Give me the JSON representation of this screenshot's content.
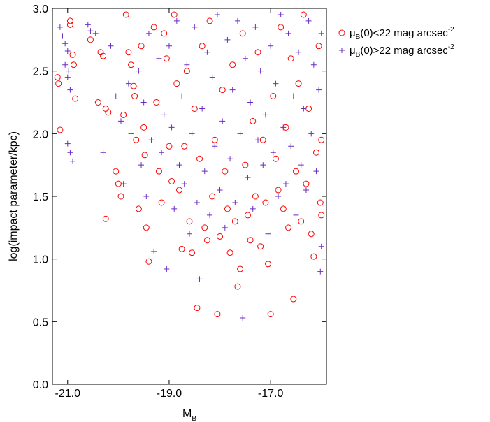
{
  "chart_data": {
    "type": "scatter",
    "title": "",
    "xlabel": {
      "main": "M",
      "sub": "B"
    },
    "ylabel": "log(impact parameter/kpc)",
    "xlim": [
      -21.3,
      -15.9
    ],
    "ylim": [
      0.0,
      3.0
    ],
    "xticks": [
      -21.0,
      -19.0,
      -17.0
    ],
    "xtick_labels": [
      "-21.0",
      "-19.0",
      "-17.0"
    ],
    "yticks": [
      0.0,
      0.5,
      1.0,
      1.5,
      2.0,
      2.5,
      3.0
    ],
    "ytick_labels": [
      "0.0",
      "0.5",
      "1.0",
      "1.5",
      "2.0",
      "2.5",
      "3.0"
    ],
    "grid": false,
    "legend_position": "outside-top-right",
    "series": [
      {
        "name": "μB(0)<22 mag arcsec-2",
        "legend": {
          "mu": "μ",
          "sub": "B",
          "text": "(0)<22 mag arcsec",
          "sup": "-2"
        },
        "marker": "circle",
        "color": "#ff0000",
        "points": [
          [
            -21.2,
            2.45
          ],
          [
            -21.18,
            2.4
          ],
          [
            -21.15,
            2.03
          ],
          [
            -20.95,
            2.9
          ],
          [
            -20.95,
            2.87
          ],
          [
            -20.9,
            2.63
          ],
          [
            -20.88,
            2.55
          ],
          [
            -20.85,
            2.28
          ],
          [
            -20.55,
            2.75
          ],
          [
            -20.4,
            2.25
          ],
          [
            -20.35,
            2.65
          ],
          [
            -20.3,
            2.62
          ],
          [
            -20.25,
            2.2
          ],
          [
            -20.25,
            1.32
          ],
          [
            -20.2,
            2.17
          ],
          [
            -20.05,
            1.7
          ],
          [
            -20.0,
            1.6
          ],
          [
            -19.95,
            1.5
          ],
          [
            -19.9,
            2.15
          ],
          [
            -19.85,
            2.95
          ],
          [
            -19.8,
            2.65
          ],
          [
            -19.75,
            2.55
          ],
          [
            -19.7,
            2.38
          ],
          [
            -19.68,
            2.3
          ],
          [
            -19.65,
            1.95
          ],
          [
            -19.6,
            1.4
          ],
          [
            -19.55,
            2.7
          ],
          [
            -19.5,
            2.05
          ],
          [
            -19.48,
            1.83
          ],
          [
            -19.45,
            1.25
          ],
          [
            -19.4,
            0.98
          ],
          [
            -19.3,
            2.85
          ],
          [
            -19.25,
            2.25
          ],
          [
            -19.2,
            1.7
          ],
          [
            -19.15,
            1.45
          ],
          [
            -19.1,
            2.8
          ],
          [
            -19.05,
            2.6
          ],
          [
            -19.0,
            1.9
          ],
          [
            -18.95,
            1.62
          ],
          [
            -18.9,
            2.95
          ],
          [
            -18.85,
            2.4
          ],
          [
            -18.8,
            1.55
          ],
          [
            -18.75,
            1.08
          ],
          [
            -18.7,
            1.9
          ],
          [
            -18.65,
            2.5
          ],
          [
            -18.6,
            1.3
          ],
          [
            -18.55,
            1.05
          ],
          [
            -18.5,
            2.2
          ],
          [
            -18.45,
            0.61
          ],
          [
            -18.4,
            1.8
          ],
          [
            -18.35,
            2.7
          ],
          [
            -18.3,
            1.25
          ],
          [
            -18.25,
            1.15
          ],
          [
            -18.2,
            2.9
          ],
          [
            -18.15,
            1.5
          ],
          [
            -18.1,
            1.95
          ],
          [
            -18.05,
            0.56
          ],
          [
            -18.0,
            1.18
          ],
          [
            -17.95,
            2.35
          ],
          [
            -17.9,
            1.7
          ],
          [
            -17.85,
            1.4
          ],
          [
            -17.8,
            1.05
          ],
          [
            -17.75,
            2.55
          ],
          [
            -17.7,
            1.3
          ],
          [
            -17.65,
            0.78
          ],
          [
            -17.6,
            0.92
          ],
          [
            -17.55,
            2.8
          ],
          [
            -17.5,
            1.75
          ],
          [
            -17.45,
            1.35
          ],
          [
            -17.4,
            1.15
          ],
          [
            -17.35,
            2.1
          ],
          [
            -17.3,
            1.5
          ],
          [
            -17.25,
            2.65
          ],
          [
            -17.2,
            1.1
          ],
          [
            -17.15,
            1.95
          ],
          [
            -17.1,
            1.45
          ],
          [
            -17.05,
            0.96
          ],
          [
            -17.0,
            0.56
          ],
          [
            -16.95,
            2.3
          ],
          [
            -16.9,
            1.8
          ],
          [
            -16.85,
            1.55
          ],
          [
            -16.8,
            2.85
          ],
          [
            -16.75,
            1.4
          ],
          [
            -16.7,
            2.05
          ],
          [
            -16.65,
            1.25
          ],
          [
            -16.6,
            2.6
          ],
          [
            -16.55,
            0.68
          ],
          [
            -16.5,
            1.7
          ],
          [
            -16.45,
            2.4
          ],
          [
            -16.4,
            1.3
          ],
          [
            -16.35,
            2.95
          ],
          [
            -16.3,
            1.6
          ],
          [
            -16.25,
            2.2
          ],
          [
            -16.2,
            1.2
          ],
          [
            -16.15,
            1.02
          ],
          [
            -16.1,
            1.85
          ],
          [
            -16.05,
            2.7
          ],
          [
            -16.02,
            1.45
          ],
          [
            -16.0,
            1.35
          ],
          [
            -16.0,
            1.95
          ]
        ]
      },
      {
        "name": "μB(0)>22 mag arcsec-2",
        "legend": {
          "mu": "μ",
          "sub": "B",
          "text": "(0)>22 mag arcsec",
          "sup": "-2"
        },
        "marker": "plus",
        "color": "#6a2bc4",
        "points": [
          [
            -21.15,
            2.85
          ],
          [
            -21.1,
            2.78
          ],
          [
            -21.05,
            2.72
          ],
          [
            -21.05,
            2.55
          ],
          [
            -21.0,
            2.66
          ],
          [
            -21.0,
            2.45
          ],
          [
            -20.98,
            2.5
          ],
          [
            -20.95,
            2.35
          ],
          [
            -21.0,
            1.92
          ],
          [
            -20.95,
            1.85
          ],
          [
            -20.9,
            1.78
          ],
          [
            -20.6,
            2.87
          ],
          [
            -20.55,
            2.82
          ],
          [
            -20.45,
            2.8
          ],
          [
            -20.3,
            1.85
          ],
          [
            -20.15,
            2.7
          ],
          [
            -20.05,
            2.3
          ],
          [
            -19.95,
            2.1
          ],
          [
            -19.9,
            1.6
          ],
          [
            -19.8,
            2.4
          ],
          [
            -19.75,
            2.0
          ],
          [
            -19.6,
            2.5
          ],
          [
            -19.55,
            1.75
          ],
          [
            -19.5,
            2.25
          ],
          [
            -19.45,
            1.5
          ],
          [
            -19.4,
            2.8
          ],
          [
            -19.35,
            1.95
          ],
          [
            -19.3,
            1.06
          ],
          [
            -19.2,
            2.6
          ],
          [
            -19.15,
            1.85
          ],
          [
            -19.1,
            2.15
          ],
          [
            -19.05,
            0.92
          ],
          [
            -19.0,
            2.7
          ],
          [
            -18.95,
            2.05
          ],
          [
            -18.9,
            1.4
          ],
          [
            -18.85,
            2.9
          ],
          [
            -18.8,
            1.75
          ],
          [
            -18.75,
            2.3
          ],
          [
            -18.7,
            1.6
          ],
          [
            -18.65,
            2.55
          ],
          [
            -18.6,
            1.2
          ],
          [
            -18.55,
            2.0
          ],
          [
            -18.5,
            2.85
          ],
          [
            -18.45,
            1.45
          ],
          [
            -18.4,
            0.84
          ],
          [
            -18.35,
            2.2
          ],
          [
            -18.3,
            1.7
          ],
          [
            -18.25,
            2.65
          ],
          [
            -18.2,
            1.35
          ],
          [
            -18.15,
            2.45
          ],
          [
            -18.1,
            1.9
          ],
          [
            -18.05,
            2.95
          ],
          [
            -18.0,
            1.55
          ],
          [
            -17.95,
            2.1
          ],
          [
            -17.9,
            1.25
          ],
          [
            -17.85,
            2.75
          ],
          [
            -17.8,
            1.8
          ],
          [
            -17.75,
            2.35
          ],
          [
            -17.7,
            1.45
          ],
          [
            -17.65,
            2.9
          ],
          [
            -17.6,
            2.0
          ],
          [
            -17.55,
            0.53
          ],
          [
            -17.5,
            2.6
          ],
          [
            -17.45,
            1.65
          ],
          [
            -17.4,
            2.25
          ],
          [
            -17.35,
            1.4
          ],
          [
            -17.3,
            2.85
          ],
          [
            -17.25,
            1.95
          ],
          [
            -17.2,
            2.5
          ],
          [
            -17.15,
            1.75
          ],
          [
            -17.1,
            2.15
          ],
          [
            -17.05,
            1.2
          ],
          [
            -17.0,
            2.7
          ],
          [
            -16.95,
            1.85
          ],
          [
            -16.9,
            2.4
          ],
          [
            -16.85,
            1.5
          ],
          [
            -16.8,
            2.95
          ],
          [
            -16.75,
            2.05
          ],
          [
            -16.7,
            1.6
          ],
          [
            -16.65,
            2.8
          ],
          [
            -16.6,
            1.9
          ],
          [
            -16.55,
            2.3
          ],
          [
            -16.5,
            1.35
          ],
          [
            -16.45,
            2.65
          ],
          [
            -16.4,
            1.75
          ],
          [
            -16.35,
            2.2
          ],
          [
            -16.3,
            1.55
          ],
          [
            -16.25,
            2.9
          ],
          [
            -16.2,
            2.0
          ],
          [
            -16.15,
            2.55
          ],
          [
            -16.1,
            1.7
          ],
          [
            -16.05,
            2.35
          ],
          [
            -16.02,
            0.9
          ],
          [
            -16.0,
            2.8
          ],
          [
            -16.0,
            1.1
          ]
        ]
      }
    ]
  }
}
